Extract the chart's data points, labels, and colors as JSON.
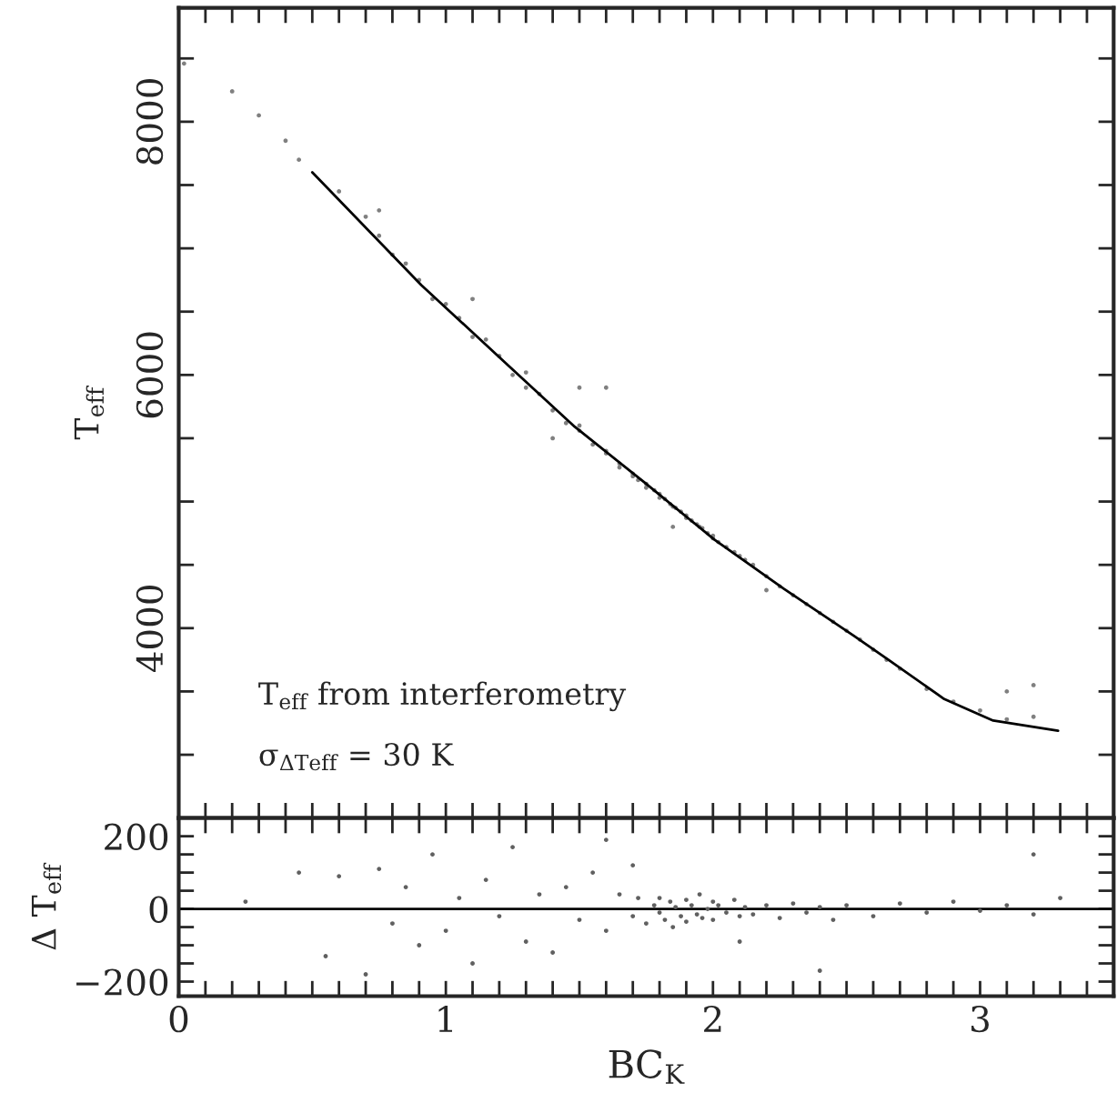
{
  "chart_data": [
    {
      "type": "scatter",
      "ylabel": "T$_{eff}$",
      "legend": false,
      "grid": false,
      "tick_labels": "y",
      "annotations": [
        "T$_{eff}$ from interferometry",
        "σ$_{ΔTeff}$ = 30 K"
      ],
      "xlim": [
        0,
        3.5
      ],
      "ylim": [
        2500,
        8900
      ],
      "xticks": [
        0,
        {
          "value": 0.1,
          "label": null
        },
        {
          "value": 0.2,
          "label": null
        },
        {
          "value": 0.3,
          "label": null
        },
        {
          "value": 0.4,
          "label": null
        },
        {
          "value": 0.5,
          "label": null
        },
        {
          "value": 0.6,
          "label": null
        },
        {
          "value": 0.7,
          "label": null
        },
        {
          "value": 0.8,
          "label": null
        },
        {
          "value": 0.9,
          "label": null
        },
        1,
        {
          "value": 1.1,
          "label": null
        },
        {
          "value": 1.2,
          "label": null
        },
        {
          "value": 1.3,
          "label": null
        },
        {
          "value": 1.4,
          "label": null
        },
        {
          "value": 1.5,
          "label": null
        },
        {
          "value": 1.6,
          "label": null
        },
        {
          "value": 1.7,
          "label": null
        },
        {
          "value": 1.8,
          "label": null
        },
        {
          "value": 1.9,
          "label": null
        },
        2,
        {
          "value": 2.1,
          "label": null
        },
        {
          "value": 2.2,
          "label": null
        },
        {
          "value": 2.3,
          "label": null
        },
        {
          "value": 2.4,
          "label": null
        },
        {
          "value": 2.5,
          "label": null
        },
        {
          "value": 2.6,
          "label": null
        },
        {
          "value": 2.7,
          "label": null
        },
        {
          "value": 2.8,
          "label": null
        },
        {
          "value": 2.9,
          "label": null
        },
        3,
        {
          "value": 3.1,
          "label": null
        },
        {
          "value": 3.2,
          "label": null
        },
        {
          "value": 3.3,
          "label": null
        },
        {
          "value": 3.4,
          "label": null
        }
      ],
      "yticks": [
        {
          "value": 3000,
          "label": null
        },
        {
          "value": 3500,
          "label": null
        },
        4000,
        {
          "value": 4500,
          "label": null
        },
        {
          "value": 5000,
          "label": null
        },
        {
          "value": 5500,
          "label": null
        },
        6000,
        {
          "value": 6500,
          "label": null
        },
        {
          "value": 7000,
          "label": null
        },
        {
          "value": 7500,
          "label": null
        },
        8000,
        {
          "value": 8500,
          "label": null
        }
      ],
      "series": [
        {
          "color": "#808080",
          "marker": "circle",
          "x": [
            0.02,
            0.2,
            0.3,
            0.4,
            0.45,
            0.6,
            0.7,
            0.75,
            0.8,
            0.85,
            0.9,
            0.95,
            1.0,
            1.05,
            1.1,
            1.15,
            1.2,
            1.25,
            1.3,
            1.3,
            1.35,
            1.4,
            1.45,
            1.5,
            1.5,
            1.55,
            1.6,
            1.6,
            1.65,
            1.65,
            1.7,
            1.7,
            1.72,
            1.75,
            1.75,
            1.78,
            1.8,
            1.8,
            1.82,
            1.84,
            1.85,
            1.86,
            1.88,
            1.9,
            1.9,
            1.92,
            1.94,
            1.95,
            1.96,
            1.98,
            2.0,
            2.0,
            2.02,
            2.05,
            2.08,
            2.1,
            2.12,
            2.15,
            2.2,
            2.25,
            2.3,
            2.35,
            2.4,
            2.45,
            2.5,
            2.55,
            2.6,
            2.65,
            2.7,
            2.8,
            2.9,
            3.0,
            3.1,
            3.2,
            3.1,
            3.2,
            1.6,
            1.5,
            1.1,
            0.75,
            1.4,
            2.2,
            1.85
          ],
          "values": [
            8460,
            8240,
            8050,
            7850,
            7700,
            7450,
            7250,
            7100,
            6950,
            6880,
            6750,
            6600,
            6560,
            6450,
            6300,
            6280,
            6150,
            6000,
            6020,
            5900,
            5850,
            5720,
            5620,
            5560,
            5600,
            5450,
            5400,
            5380,
            5300,
            5270,
            5220,
            5200,
            5170,
            5140,
            5110,
            5090,
            5060,
            5030,
            5020,
            4980,
            4960,
            4950,
            4920,
            4890,
            4870,
            4850,
            4820,
            4800,
            4790,
            4750,
            4710,
            4730,
            4680,
            4640,
            4600,
            4570,
            4540,
            4500,
            4410,
            4330,
            4260,
            4190,
            4120,
            4050,
            3980,
            3910,
            3830,
            3750,
            3680,
            3520,
            3420,
            3350,
            3280,
            3300,
            3500,
            3550,
            5900,
            5900,
            6600,
            7300,
            5500,
            4300,
            4800
          ]
        },
        {
          "type": "line",
          "color": "#000000",
          "marker": "none",
          "line_style": "solid",
          "x": [
            0.5,
            0.908,
            1.221,
            1.483,
            1.744,
            2.005,
            2.266,
            2.527,
            2.657,
            2.866,
            3.049,
            3.292
          ],
          "values": [
            7600,
            6710,
            6100,
            5590,
            5150,
            4700,
            4310,
            3940,
            3750,
            3440,
            3270,
            3190
          ]
        }
      ]
    },
    {
      "type": "scatter",
      "xlabel": "BC$_{K}$",
      "ylabel": "Δ T$_{eff}$",
      "legend": false,
      "grid": false,
      "xlim": [
        0,
        3.5
      ],
      "ylim": [
        -240,
        250
      ],
      "xticks": [
        0,
        {
          "value": 0.1,
          "label": null
        },
        {
          "value": 0.2,
          "label": null
        },
        {
          "value": 0.3,
          "label": null
        },
        {
          "value": 0.4,
          "label": null
        },
        {
          "value": 0.5,
          "label": null
        },
        {
          "value": 0.6,
          "label": null
        },
        {
          "value": 0.7,
          "label": null
        },
        {
          "value": 0.8,
          "label": null
        },
        {
          "value": 0.9,
          "label": null
        },
        1,
        {
          "value": 1.1,
          "label": null
        },
        {
          "value": 1.2,
          "label": null
        },
        {
          "value": 1.3,
          "label": null
        },
        {
          "value": 1.4,
          "label": null
        },
        {
          "value": 1.5,
          "label": null
        },
        {
          "value": 1.6,
          "label": null
        },
        {
          "value": 1.7,
          "label": null
        },
        {
          "value": 1.8,
          "label": null
        },
        {
          "value": 1.9,
          "label": null
        },
        2,
        {
          "value": 2.1,
          "label": null
        },
        {
          "value": 2.2,
          "label": null
        },
        {
          "value": 2.3,
          "label": null
        },
        {
          "value": 2.4,
          "label": null
        },
        {
          "value": 2.5,
          "label": null
        },
        {
          "value": 2.6,
          "label": null
        },
        {
          "value": 2.7,
          "label": null
        },
        {
          "value": 2.8,
          "label": null
        },
        {
          "value": 2.9,
          "label": null
        },
        3,
        {
          "value": 3.1,
          "label": null
        },
        {
          "value": 3.2,
          "label": null
        },
        {
          "value": 3.3,
          "label": null
        },
        {
          "value": 3.4,
          "label": null
        }
      ],
      "yticks": [
        {
          "value": -200,
          "label": "−200"
        },
        {
          "value": -150,
          "label": null
        },
        {
          "value": -100,
          "label": null
        },
        {
          "value": -50,
          "label": null
        },
        0,
        {
          "value": 50,
          "label": null
        },
        {
          "value": 100,
          "label": null
        },
        {
          "value": 150,
          "label": null
        },
        200
      ],
      "ref_lines": [
        {
          "axis": "y",
          "value": 0,
          "color": "#000000",
          "line_style": "solid"
        }
      ],
      "series": [
        {
          "color": "#606060",
          "marker": "circle",
          "x": [
            0.25,
            0.45,
            0.55,
            0.6,
            0.7,
            0.75,
            0.8,
            0.85,
            0.9,
            0.95,
            1.0,
            1.05,
            1.1,
            1.15,
            1.2,
            1.25,
            1.3,
            1.35,
            1.4,
            1.45,
            1.5,
            1.55,
            1.6,
            1.65,
            1.7,
            1.72,
            1.75,
            1.78,
            1.8,
            1.8,
            1.82,
            1.84,
            1.85,
            1.86,
            1.88,
            1.9,
            1.9,
            1.92,
            1.94,
            1.95,
            1.96,
            1.98,
            2.0,
            2.0,
            2.02,
            2.05,
            2.08,
            2.1,
            2.12,
            2.15,
            2.2,
            2.25,
            2.3,
            2.35,
            2.4,
            2.45,
            2.5,
            2.6,
            2.7,
            2.8,
            2.9,
            3.0,
            3.1,
            3.2,
            3.3,
            1.7,
            2.1,
            2.4,
            1.6,
            3.2
          ],
          "values": [
            20,
            100,
            -130,
            90,
            -180,
            110,
            -40,
            60,
            -100,
            150,
            -60,
            30,
            -150,
            80,
            -20,
            170,
            -90,
            40,
            -120,
            60,
            -30,
            100,
            -60,
            40,
            -20,
            30,
            -40,
            10,
            -10,
            30,
            -30,
            20,
            -50,
            5,
            -20,
            25,
            -35,
            10,
            -15,
            40,
            -25,
            0,
            20,
            -30,
            10,
            -10,
            25,
            -20,
            5,
            -15,
            10,
            -25,
            15,
            -10,
            5,
            -30,
            10,
            -20,
            15,
            -10,
            20,
            -5,
            10,
            -15,
            30,
            120,
            -90,
            -170,
            190,
            150
          ]
        }
      ]
    }
  ]
}
